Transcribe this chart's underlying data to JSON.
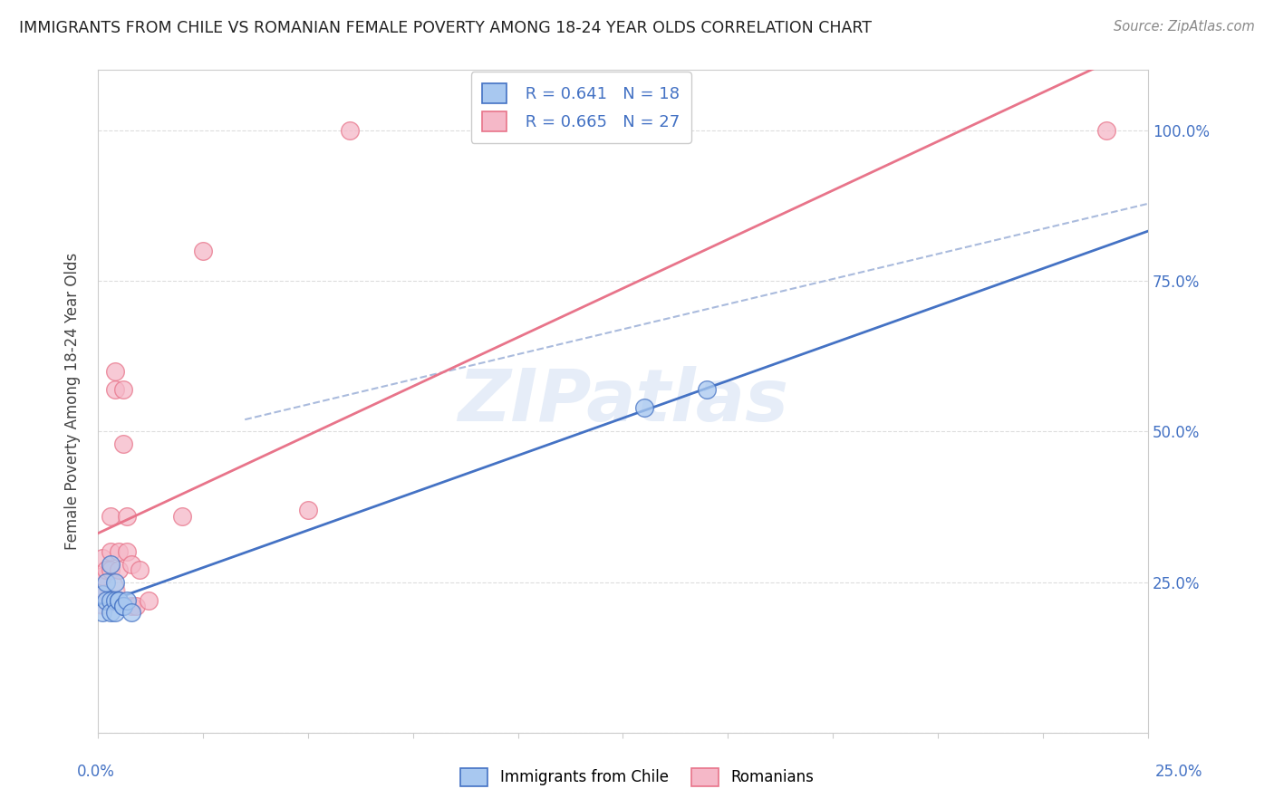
{
  "title": "IMMIGRANTS FROM CHILE VS ROMANIAN FEMALE POVERTY AMONG 18-24 YEAR OLDS CORRELATION CHART",
  "source": "Source: ZipAtlas.com",
  "ylabel": "Female Poverty Among 18-24 Year Olds",
  "legend_label_bottom_left": "Immigrants from Chile",
  "legend_label_bottom_right": "Romanians",
  "legend_R1": "R = 0.641",
  "legend_N1": "N = 18",
  "legend_R2": "R = 0.665",
  "legend_N2": "N = 27",
  "blue_color": "#A8C8F0",
  "pink_color": "#F5B8C8",
  "blue_line_color": "#4472C4",
  "pink_line_color": "#E8748A",
  "watermark": "ZIPatlas",
  "blue_scatter_x": [
    0.001,
    0.001,
    0.002,
    0.002,
    0.003,
    0.003,
    0.003,
    0.004,
    0.004,
    0.004,
    0.005,
    0.005,
    0.006,
    0.006,
    0.007,
    0.008,
    0.13,
    0.145
  ],
  "blue_scatter_y": [
    0.23,
    0.2,
    0.22,
    0.25,
    0.22,
    0.2,
    0.28,
    0.22,
    0.2,
    0.25,
    0.22,
    0.22,
    0.21,
    0.21,
    0.22,
    0.2,
    0.54,
    0.57
  ],
  "pink_scatter_x": [
    0.001,
    0.001,
    0.001,
    0.002,
    0.002,
    0.003,
    0.003,
    0.003,
    0.004,
    0.004,
    0.005,
    0.005,
    0.005,
    0.006,
    0.006,
    0.007,
    0.007,
    0.008,
    0.008,
    0.009,
    0.01,
    0.012,
    0.02,
    0.025,
    0.05,
    0.06,
    0.24
  ],
  "pink_scatter_y": [
    0.23,
    0.26,
    0.29,
    0.22,
    0.27,
    0.27,
    0.3,
    0.36,
    0.57,
    0.6,
    0.27,
    0.3,
    0.22,
    0.48,
    0.57,
    0.3,
    0.36,
    0.28,
    0.21,
    0.21,
    0.27,
    0.22,
    0.36,
    0.8,
    0.37,
    1.0,
    1.0
  ],
  "xlim": [
    0.0,
    0.25
  ],
  "ylim": [
    0.0,
    1.1
  ],
  "background_color": "#FFFFFF",
  "grid_color": "#DDDDDD",
  "grid_style": "--"
}
